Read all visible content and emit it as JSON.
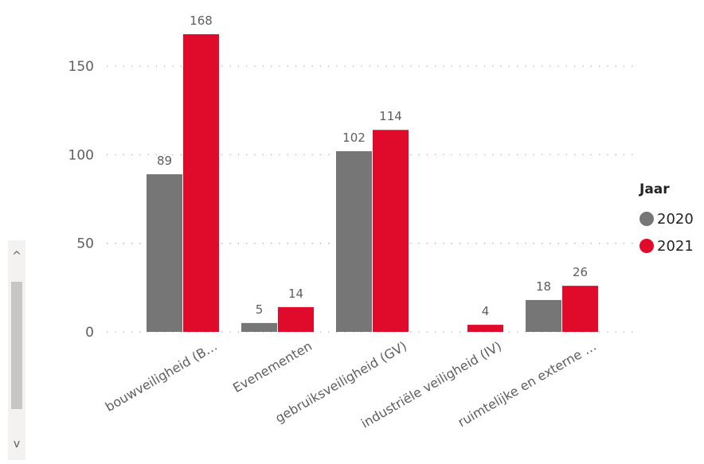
{
  "chart_data": {
    "type": "bar",
    "categories": [
      "bouwveiligheid (B…",
      "Evenementen",
      "gebruiksveiligheid (GV)",
      "industriële veiligheid (IV)",
      "ruimtelijke en externe …"
    ],
    "series": [
      {
        "name": "2020",
        "values": [
          89,
          5,
          102,
          null,
          18
        ],
        "color": "#767676"
      },
      {
        "name": "2021",
        "values": [
          168,
          14,
          114,
          4,
          26
        ],
        "color": "#e00b2b"
      }
    ],
    "ylim": [
      0,
      180
    ],
    "yticks": [
      0,
      50,
      100,
      150
    ],
    "grid": true,
    "legend_position": "right",
    "legend_title": "Jaar"
  },
  "scrollbar": {
    "up_icon": "chevron-up-icon",
    "down_icon": "chevron-down-icon",
    "up_glyph": "^",
    "down_glyph": "v"
  }
}
